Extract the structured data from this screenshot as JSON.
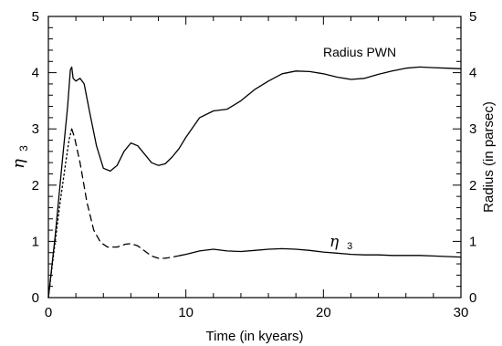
{
  "chart_data": {
    "type": "line",
    "xlabel": "Time (in kyears)",
    "ylabel_left_symbol": "η",
    "ylabel_left_sub": "3",
    "ylabel_right": "Radius  (in parsec)",
    "xlim": [
      0,
      30
    ],
    "ylim": [
      0,
      5
    ],
    "grid": false,
    "x_ticks": [
      0,
      10,
      20,
      30
    ],
    "y_ticks": [
      0,
      1,
      2,
      3,
      4,
      5
    ],
    "annotations": {
      "radius_label": "Radius PWN",
      "eta_label_symbol": "η",
      "eta_label_sub": "3"
    },
    "series": [
      {
        "id": "radius_pwn",
        "style": "solid",
        "points": [
          [
            0,
            0
          ],
          [
            0.5,
            1.1
          ],
          [
            1.0,
            2.4
          ],
          [
            1.4,
            3.4
          ],
          [
            1.6,
            4.05
          ],
          [
            1.7,
            4.1
          ],
          [
            1.8,
            3.9
          ],
          [
            2.0,
            3.85
          ],
          [
            2.3,
            3.9
          ],
          [
            2.6,
            3.8
          ],
          [
            3.0,
            3.3
          ],
          [
            3.5,
            2.7
          ],
          [
            4.0,
            2.3
          ],
          [
            4.5,
            2.25
          ],
          [
            5.0,
            2.35
          ],
          [
            5.5,
            2.6
          ],
          [
            6.0,
            2.75
          ],
          [
            6.5,
            2.7
          ],
          [
            7.0,
            2.55
          ],
          [
            7.5,
            2.4
          ],
          [
            8.0,
            2.35
          ],
          [
            8.5,
            2.38
          ],
          [
            9.0,
            2.5
          ],
          [
            9.5,
            2.65
          ],
          [
            10.0,
            2.85
          ],
          [
            11.0,
            3.2
          ],
          [
            12.0,
            3.32
          ],
          [
            13.0,
            3.35
          ],
          [
            14.0,
            3.5
          ],
          [
            15.0,
            3.7
          ],
          [
            16.0,
            3.85
          ],
          [
            17.0,
            3.98
          ],
          [
            18.0,
            4.03
          ],
          [
            19.0,
            4.02
          ],
          [
            20.0,
            3.98
          ],
          [
            21.0,
            3.92
          ],
          [
            22.0,
            3.88
          ],
          [
            23.0,
            3.9
          ],
          [
            24.0,
            3.97
          ],
          [
            25.0,
            4.03
          ],
          [
            26.0,
            4.08
          ],
          [
            27.0,
            4.1
          ],
          [
            28.0,
            4.09
          ],
          [
            29.0,
            4.08
          ],
          [
            30.0,
            4.07
          ]
        ]
      },
      {
        "id": "eta3_dotted",
        "style": "dotted",
        "points": [
          [
            0,
            0
          ],
          [
            0.4,
            0.8
          ],
          [
            0.8,
            1.6
          ],
          [
            1.2,
            2.3
          ],
          [
            1.5,
            2.8
          ],
          [
            1.7,
            3.0
          ]
        ]
      },
      {
        "id": "eta3_dashed",
        "style": "dashed",
        "points": [
          [
            1.7,
            3.0
          ],
          [
            1.9,
            2.85
          ],
          [
            2.3,
            2.4
          ],
          [
            2.8,
            1.7
          ],
          [
            3.3,
            1.2
          ],
          [
            3.8,
            0.98
          ],
          [
            4.3,
            0.9
          ],
          [
            5.0,
            0.9
          ],
          [
            5.6,
            0.95
          ],
          [
            6.0,
            0.96
          ],
          [
            6.5,
            0.92
          ],
          [
            7.0,
            0.83
          ],
          [
            7.5,
            0.74
          ],
          [
            8.0,
            0.7
          ],
          [
            8.5,
            0.7
          ],
          [
            9.0,
            0.72
          ],
          [
            9.6,
            0.75
          ]
        ]
      },
      {
        "id": "eta3_solid",
        "style": "solid",
        "points": [
          [
            9.6,
            0.75
          ],
          [
            10.0,
            0.77
          ],
          [
            11.0,
            0.83
          ],
          [
            12.0,
            0.86
          ],
          [
            13.0,
            0.83
          ],
          [
            14.0,
            0.82
          ],
          [
            15.0,
            0.84
          ],
          [
            16.0,
            0.86
          ],
          [
            17.0,
            0.87
          ],
          [
            18.0,
            0.86
          ],
          [
            19.0,
            0.84
          ],
          [
            20.0,
            0.81
          ],
          [
            21.0,
            0.79
          ],
          [
            22.0,
            0.77
          ],
          [
            23.0,
            0.76
          ],
          [
            24.0,
            0.76
          ],
          [
            25.0,
            0.75
          ],
          [
            26.0,
            0.75
          ],
          [
            27.0,
            0.75
          ],
          [
            28.0,
            0.74
          ],
          [
            29.0,
            0.73
          ],
          [
            30.0,
            0.72
          ]
        ]
      }
    ]
  }
}
